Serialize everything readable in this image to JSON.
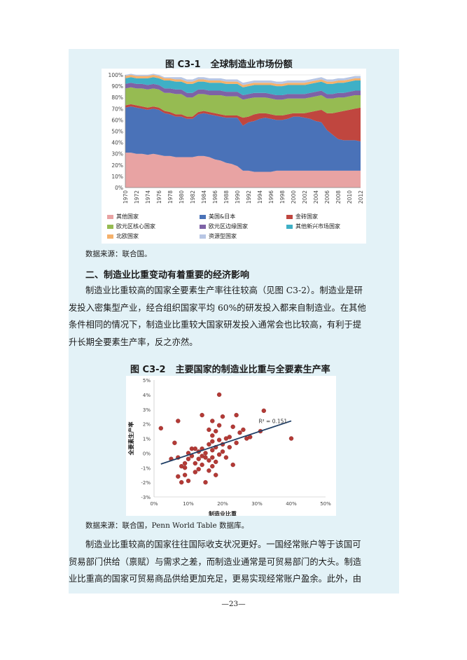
{
  "figure1": {
    "number": "图 C3-1",
    "caption": "全球制造业市场份额",
    "source": "数据来源：联合国。",
    "legend": [
      {
        "label": "其他国家",
        "color": "#e8a3a3"
      },
      {
        "label": "美国&日本",
        "color": "#4a72b8"
      },
      {
        "label": "金砖国家",
        "color": "#c0463f"
      },
      {
        "label": "欧元区核心国家",
        "color": "#96bb52"
      },
      {
        "label": "欧元区边缘国家",
        "color": "#7e62a6"
      },
      {
        "label": "其他新兴市场国家",
        "color": "#3fb0c6"
      },
      {
        "label": "北欧国家",
        "color": "#f5b16b"
      },
      {
        "label": "资源型国家",
        "color": "#b8c6e4"
      }
    ]
  },
  "section_heading": "二、制造业比重变动有着重要的经济影响",
  "paragraph1": [
    "制造业比重较高的国家全要素生产率往往较高（见图 C3-2）。制造业是研",
    "发投入密集型产业，经合组织国家平均 60%的研发投入都来自制造业。在其他",
    "条件相同的情况下，制造业比重较大国家研发投入通常会也比较高，有利于提",
    "升长期全要素生产率，反之亦然。"
  ],
  "figure2": {
    "number": "图 C3-2",
    "caption": "主要国家的制造业比重与全要素生产率",
    "source": "数据来源：联合国，Penn World Table 数据库。",
    "r2_label": "R² = 0.151",
    "point_color": "#b33a36",
    "trend_color": "#1f3f66"
  },
  "paragraph2": [
    "制造业比重较高的国家往往国际收支状况更好。一国经常账户等于该国可",
    "贸易部门供给（禀赋）与需求之差，而制造业通常是可贸易部门的大头。制造",
    "业比重高的国家可贸易商品供给更加充足，更易实现经常账户盈余。此外，由"
  ],
  "page_number": "—23—",
  "chart_data": [
    {
      "type": "area",
      "title": "全球制造业市场份额",
      "x": [
        1970,
        1971,
        1972,
        1973,
        1974,
        1975,
        1976,
        1977,
        1978,
        1979,
        1980,
        1981,
        1982,
        1983,
        1984,
        1985,
        1986,
        1987,
        1988,
        1989,
        1990,
        1991,
        1992,
        1993,
        1994,
        1995,
        1996,
        1997,
        1998,
        1999,
        2000,
        2001,
        2002,
        2003,
        2004,
        2005,
        2006,
        2007,
        2008,
        2009,
        2010,
        2011,
        2012
      ],
      "x_tick_labels": [
        "1970",
        "1972",
        "1974",
        "1976",
        "1978",
        "1980",
        "1982",
        "1984",
        "1986",
        "1988",
        "1990",
        "1992",
        "1994",
        "1996",
        "1998",
        "2000",
        "2002",
        "2004",
        "2006",
        "2008",
        "2010",
        "2012"
      ],
      "y_tick_labels": [
        "0%",
        "10%",
        "20%",
        "30%",
        "40%",
        "50%",
        "60%",
        "70%",
        "80%",
        "90%",
        "100%"
      ],
      "ylim": [
        0,
        100
      ],
      "stacked": true,
      "series": [
        {
          "name": "其他国家",
          "values": [
            31,
            31,
            30,
            30,
            29,
            30,
            29,
            28,
            28,
            27,
            27,
            27,
            27,
            28,
            28,
            27,
            25,
            24,
            22,
            21,
            19,
            15,
            15,
            14,
            14,
            14,
            14,
            15,
            15,
            15,
            15,
            15,
            15,
            15,
            15,
            15,
            15,
            15,
            15,
            15,
            15,
            15,
            15
          ]
        },
        {
          "name": "美国&日本",
          "values": [
            40,
            41,
            41,
            40,
            40,
            40,
            40,
            38,
            37,
            36,
            36,
            34,
            34,
            37,
            38,
            38,
            39,
            39,
            40,
            41,
            43,
            40,
            43,
            45,
            47,
            48,
            47,
            45,
            45,
            46,
            48,
            48,
            47,
            46,
            44,
            43,
            36,
            32,
            28,
            27,
            27,
            27,
            26
          ]
        },
        {
          "name": "金砖国家",
          "values": [
            2,
            2,
            2,
            2,
            2,
            2,
            2,
            2,
            2,
            2,
            2,
            2,
            2,
            2,
            2,
            2,
            2,
            2,
            2,
            2,
            2,
            7,
            5,
            6,
            5,
            4,
            4,
            4,
            4,
            4,
            3,
            3,
            4,
            6,
            9,
            11,
            15,
            19,
            24,
            26,
            27,
            28,
            30
          ]
        },
        {
          "name": "欧元区核心国家",
          "values": [
            15,
            15,
            15,
            16,
            16,
            16,
            16,
            16,
            17,
            18,
            18,
            17,
            17,
            16,
            15,
            15,
            16,
            17,
            17,
            17,
            17,
            16,
            16,
            15,
            14,
            14,
            14,
            14,
            14,
            14,
            13,
            13,
            13,
            13,
            13,
            13,
            13,
            13,
            13,
            12,
            12,
            12,
            11
          ]
        },
        {
          "name": "欧元区边缘国家",
          "values": [
            4,
            4,
            4,
            4,
            4,
            4,
            4,
            4,
            4,
            4,
            4,
            4,
            4,
            4,
            4,
            4,
            4,
            4,
            4,
            4,
            4,
            4,
            4,
            4,
            4,
            4,
            4,
            4,
            4,
            4,
            4,
            4,
            4,
            4,
            4,
            4,
            4,
            4,
            4,
            4,
            4,
            4,
            4
          ]
        },
        {
          "name": "其他新兴市场国家",
          "values": [
            5,
            5,
            5,
            5,
            6,
            6,
            6,
            7,
            7,
            7,
            7,
            8,
            8,
            7,
            7,
            7,
            7,
            7,
            7,
            7,
            7,
            7,
            7,
            7,
            7,
            7,
            8,
            8,
            8,
            8,
            8,
            8,
            8,
            8,
            8,
            8,
            9,
            9,
            9,
            9,
            9,
            9,
            9
          ]
        },
        {
          "name": "北欧国家",
          "values": [
            2,
            2,
            2,
            2,
            2,
            2,
            2,
            2,
            2,
            2,
            2,
            2,
            2,
            2,
            2,
            2,
            2,
            2,
            2,
            2,
            2,
            2,
            2,
            2,
            2,
            2,
            2,
            2,
            2,
            2,
            2,
            2,
            2,
            2,
            2,
            2,
            2,
            2,
            2,
            2,
            2,
            2,
            2
          ]
        },
        {
          "name": "资源型国家",
          "values": [
            1,
            1,
            1,
            1,
            1,
            1,
            1,
            1,
            1,
            2,
            2,
            2,
            2,
            2,
            2,
            2,
            2,
            2,
            2,
            2,
            2,
            2,
            2,
            2,
            2,
            2,
            2,
            2,
            2,
            2,
            2,
            2,
            2,
            2,
            2,
            2,
            2,
            2,
            2,
            2,
            2,
            2,
            2
          ]
        }
      ],
      "grid": true,
      "legend_position": "bottom"
    },
    {
      "type": "scatter",
      "title": "主要国家的制造业比重与全要素生产率",
      "xlabel": "制造业比重",
      "ylabel": "全要素生产率",
      "xlim": [
        0,
        50
      ],
      "ylim": [
        -3,
        5
      ],
      "x_tick_labels": [
        "0%",
        "10%",
        "20%",
        "30%",
        "40%",
        "50%"
      ],
      "y_tick_labels": [
        "-3%",
        "-2%",
        "-1%",
        "0%",
        "1%",
        "2%",
        "3%",
        "4%",
        "5%"
      ],
      "trendline": {
        "x": [
          2,
          40
        ],
        "y": [
          -0.75,
          2.2
        ],
        "r_squared": 0.151
      },
      "points": [
        {
          "x": 2,
          "y": 1.7
        },
        {
          "x": 5,
          "y": -0.4
        },
        {
          "x": 6,
          "y": 0.7
        },
        {
          "x": 7,
          "y": 2.2
        },
        {
          "x": 7,
          "y": -0.3
        },
        {
          "x": 7,
          "y": -1.6
        },
        {
          "x": 8,
          "y": -0.9
        },
        {
          "x": 8,
          "y": -2.0
        },
        {
          "x": 9,
          "y": -1.0
        },
        {
          "x": 9,
          "y": -1.5
        },
        {
          "x": 9,
          "y": -0.7
        },
        {
          "x": 10,
          "y": 0.0
        },
        {
          "x": 10,
          "y": -0.4
        },
        {
          "x": 10,
          "y": -1.9
        },
        {
          "x": 11,
          "y": 0.3
        },
        {
          "x": 11,
          "y": -0.2
        },
        {
          "x": 12,
          "y": 0.3
        },
        {
          "x": 12,
          "y": -0.7
        },
        {
          "x": 12,
          "y": -1.3
        },
        {
          "x": 13,
          "y": 0.1
        },
        {
          "x": 13,
          "y": -0.4
        },
        {
          "x": 13,
          "y": -1.1
        },
        {
          "x": 14,
          "y": 2.6
        },
        {
          "x": 14,
          "y": 0.3
        },
        {
          "x": 14,
          "y": -0.2
        },
        {
          "x": 14,
          "y": -0.8
        },
        {
          "x": 15,
          "y": -0.3
        },
        {
          "x": 15,
          "y": -2.0
        },
        {
          "x": 15,
          "y": 0.0
        },
        {
          "x": 16,
          "y": 1.6
        },
        {
          "x": 16,
          "y": 0.6
        },
        {
          "x": 16,
          "y": -0.5
        },
        {
          "x": 16,
          "y": -1.2
        },
        {
          "x": 17,
          "y": 2.2
        },
        {
          "x": 17,
          "y": 1.2
        },
        {
          "x": 17,
          "y": 0.8
        },
        {
          "x": 17,
          "y": 0.2
        },
        {
          "x": 17,
          "y": -0.3
        },
        {
          "x": 17,
          "y": -0.9
        },
        {
          "x": 18,
          "y": 1.5
        },
        {
          "x": 18,
          "y": 0.4
        },
        {
          "x": 18,
          "y": -0.6
        },
        {
          "x": 18,
          "y": -1.5
        },
        {
          "x": 19,
          "y": 4.0
        },
        {
          "x": 19,
          "y": 1.9
        },
        {
          "x": 19,
          "y": 0.9
        },
        {
          "x": 19,
          "y": -0.1
        },
        {
          "x": 20,
          "y": 2.5
        },
        {
          "x": 20,
          "y": 0.6
        },
        {
          "x": 20,
          "y": 0.1
        },
        {
          "x": 21,
          "y": 1.0
        },
        {
          "x": 21,
          "y": -0.3
        },
        {
          "x": 22,
          "y": 1.1
        },
        {
          "x": 22,
          "y": 0.4
        },
        {
          "x": 23,
          "y": 1.8
        },
        {
          "x": 23,
          "y": -0.8
        },
        {
          "x": 24,
          "y": 0.7
        },
        {
          "x": 24,
          "y": 2.6
        },
        {
          "x": 25,
          "y": 1.4
        },
        {
          "x": 26,
          "y": 1.6
        },
        {
          "x": 27,
          "y": 1.0
        },
        {
          "x": 28,
          "y": 1.1
        },
        {
          "x": 31,
          "y": 1.5
        },
        {
          "x": 32,
          "y": 2.9
        },
        {
          "x": 40,
          "y": 1.0
        }
      ]
    }
  ]
}
